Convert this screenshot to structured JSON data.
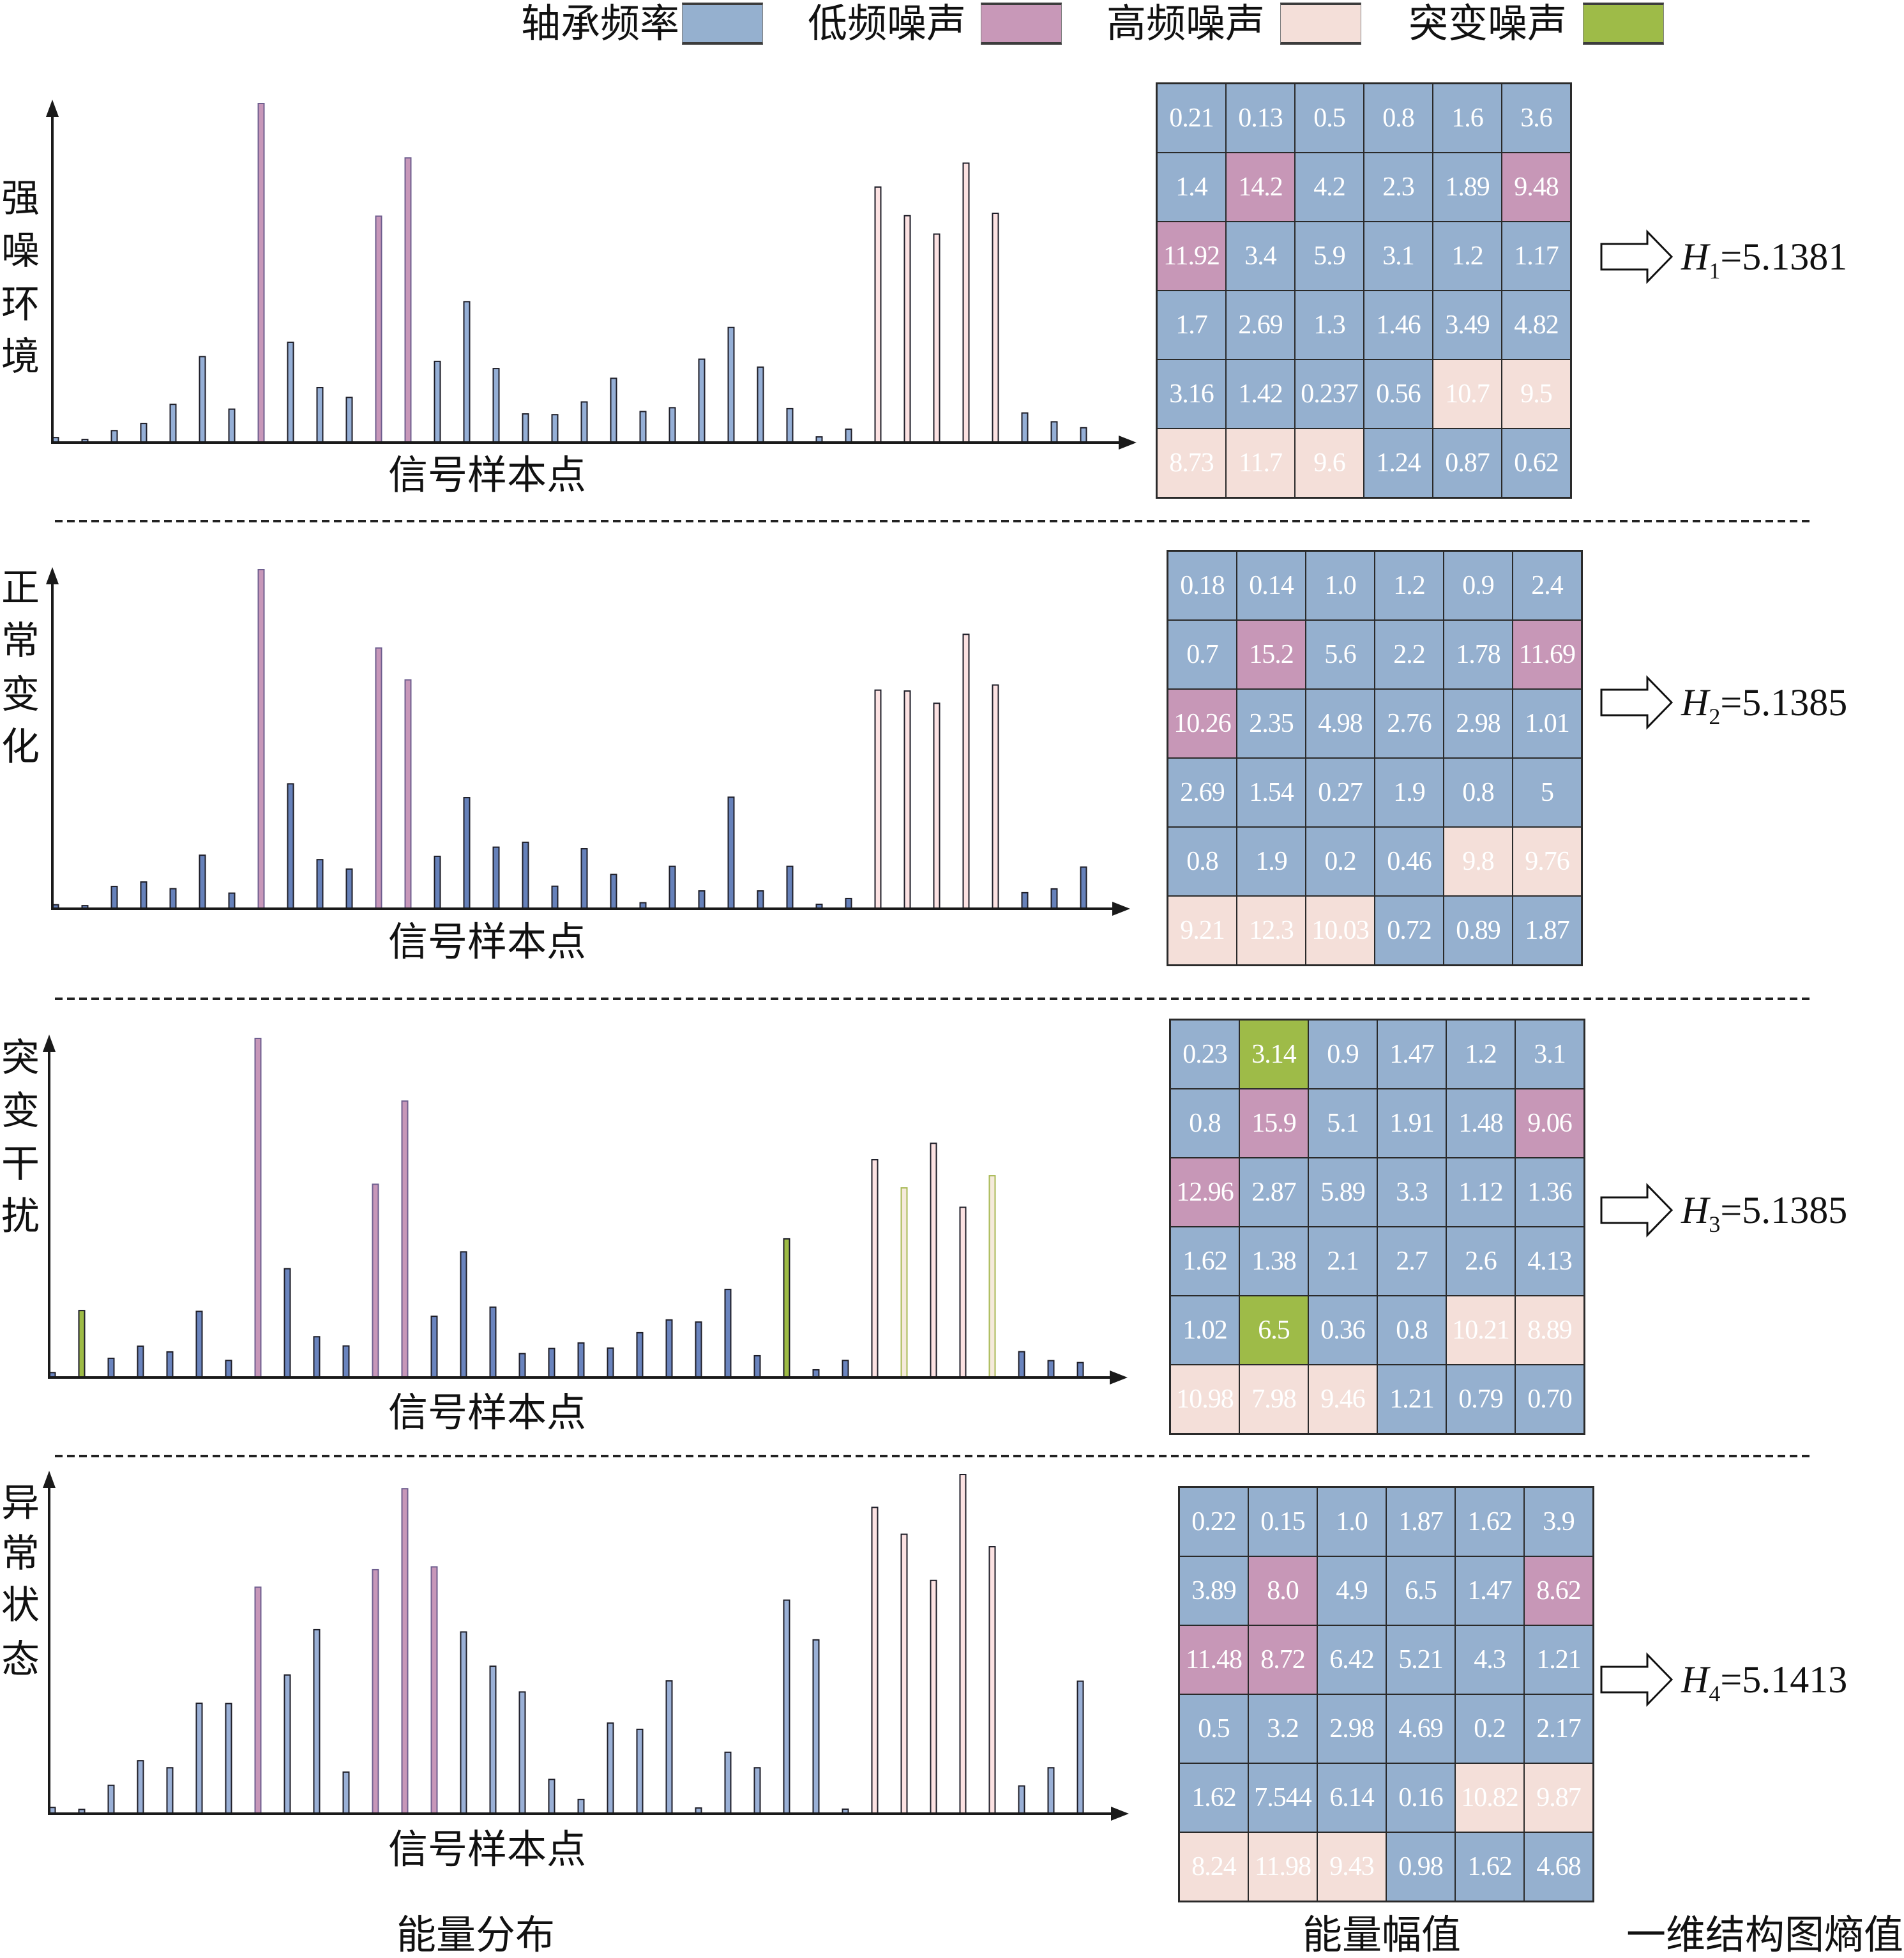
{
  "legend": [
    {
      "label": "轴承频率",
      "color": "#95B0CF"
    },
    {
      "label": "低频噪声",
      "color": "#C898B8"
    },
    {
      "label": "高频噪声",
      "color": "#F4DFD9"
    },
    {
      "label": "突变噪声",
      "color": "#9EBB48"
    }
  ],
  "cell_colors": {
    "b": "#95B0CF",
    "l": "#C797B7",
    "h": "#F4DFD9",
    "m": "#9EBB48"
  },
  "panels": [
    {
      "label": "强噪环境",
      "label_chars": [
        "强",
        "噪",
        "环",
        "境"
      ],
      "xlabel": "信号样本点",
      "matrix": [
        [
          "0.21",
          "0.13",
          "0.5",
          "0.8",
          "1.6",
          "3.6"
        ],
        [
          "1.4",
          "14.2",
          "4.2",
          "2.3",
          "1.89",
          "9.48"
        ],
        [
          "11.92",
          "3.4",
          "5.9",
          "3.1",
          "1.2",
          "1.17"
        ],
        [
          "1.7",
          "2.69",
          "1.3",
          "1.46",
          "3.49",
          "4.82"
        ],
        [
          "3.16",
          "1.42",
          "0.237",
          "0.56",
          "10.7",
          "9.5"
        ],
        [
          "8.73",
          "11.7",
          "9.6",
          "1.24",
          "0.87",
          "0.62"
        ]
      ],
      "classes": [
        "bbbbbb",
        "blbbbl",
        "lbbbbb",
        "bbbbbb",
        "bbbbhh",
        "hhhbbb"
      ],
      "entropy": {
        "symbol": "H",
        "index": "1",
        "relation": "=",
        "value": "5.1381"
      }
    },
    {
      "label": "正常变化",
      "label_chars": [
        "正",
        "常",
        "变",
        "化"
      ],
      "xlabel": "信号样本点",
      "matrix": [
        [
          "0.18",
          "0.14",
          "1.0",
          "1.2",
          "0.9",
          "2.4"
        ],
        [
          "0.7",
          "15.2",
          "5.6",
          "2.2",
          "1.78",
          "11.69"
        ],
        [
          "10.26",
          "2.35",
          "4.98",
          "2.76",
          "2.98",
          "1.01"
        ],
        [
          "2.69",
          "1.54",
          "0.27",
          "1.9",
          "0.8",
          "5"
        ],
        [
          "0.8",
          "1.9",
          "0.2",
          "0.46",
          "9.8",
          "9.76"
        ],
        [
          "9.21",
          "12.3",
          "10.03",
          "0.72",
          "0.89",
          "1.87"
        ]
      ],
      "classes": [
        "bbbbbb",
        "blbbbl",
        "lbbbbb",
        "bbbbbb",
        "bbbbhh",
        "hhhbbb"
      ],
      "entropy": {
        "symbol": "H",
        "index": "2",
        "relation": "=",
        "value": "5.1385"
      }
    },
    {
      "label": "突变干扰",
      "label_chars": [
        "突",
        "变",
        "干",
        "扰"
      ],
      "xlabel": "信号样本点",
      "matrix": [
        [
          "0.23",
          "3.14",
          "0.9",
          "1.47",
          "1.2",
          "3.1"
        ],
        [
          "0.8",
          "15.9",
          "5.1",
          "1.91",
          "1.48",
          "9.06"
        ],
        [
          "12.96",
          "2.87",
          "5.89",
          "3.3",
          "1.12",
          "1.36"
        ],
        [
          "1.62",
          "1.38",
          "2.1",
          "2.7",
          "2.6",
          "4.13"
        ],
        [
          "1.02",
          "6.5",
          "0.36",
          "0.8",
          "10.21",
          "8.89"
        ],
        [
          "10.98",
          "7.98",
          "9.46",
          "1.21",
          "0.79",
          "0.70"
        ]
      ],
      "classes": [
        "bmbbbb",
        "blbbbl",
        "lbbbbb",
        "bbbbbb",
        "bmbbhh",
        "hhhbbb"
      ],
      "entropy": {
        "symbol": "H",
        "index": "3",
        "relation": "=",
        "value": "5.1385"
      }
    },
    {
      "label": "异常状态",
      "label_chars": [
        "异",
        "常",
        "状",
        "态"
      ],
      "xlabel": "信号样本点",
      "matrix": [
        [
          "0.22",
          "0.15",
          "1.0",
          "1.87",
          "1.62",
          "3.9"
        ],
        [
          "3.89",
          "8.0",
          "4.9",
          "6.5",
          "1.47",
          "8.62"
        ],
        [
          "11.48",
          "8.72",
          "6.42",
          "5.21",
          "4.3",
          "1.21"
        ],
        [
          "0.5",
          "3.2",
          "2.98",
          "4.69",
          "0.2",
          "2.17"
        ],
        [
          "1.62",
          "7.544",
          "6.14",
          "0.16",
          "10.82",
          "9.87"
        ],
        [
          "8.24",
          "11.98",
          "9.43",
          "0.98",
          "1.62",
          "4.68"
        ]
      ],
      "classes": [
        "bbbbbb",
        "blbbbl",
        "llbbbb",
        "bbbbbb",
        "bbbbhh",
        "hhhbbb"
      ],
      "entropy": {
        "symbol": "H",
        "index": "4",
        "relation": "=",
        "value": "5.1413"
      }
    }
  ],
  "footer": {
    "distribution": "能量分布",
    "amplitude": "能量幅值",
    "entropy": "一维结构图熵值"
  },
  "chart_data": [
    {
      "type": "bar",
      "title": "强噪环境",
      "xlabel": "信号样本点",
      "ylabel": "",
      "ylim": [
        0,
        14.2
      ],
      "grid": false,
      "values": [
        0.21,
        0.13,
        0.5,
        0.8,
        1.6,
        3.6,
        1.4,
        14.2,
        4.2,
        2.3,
        1.89,
        9.48,
        11.92,
        3.4,
        5.9,
        3.1,
        1.2,
        1.17,
        1.7,
        2.69,
        1.3,
        1.46,
        3.49,
        4.82,
        3.16,
        1.42,
        0.237,
        0.56,
        10.7,
        9.5,
        8.73,
        11.7,
        9.6,
        1.24,
        0.87,
        0.62
      ],
      "bar_class": [
        "bbbbbb",
        "blbbbl",
        "lbbbbb",
        "bbbbbb",
        "bbbbhh",
        "hhhbbb"
      ],
      "bar_colors": {
        "b": "#95AFD6",
        "l": "#C797B9",
        "h": "#FCE2E2",
        "m": "#9DBB45"
      }
    },
    {
      "type": "bar",
      "title": "正常变化",
      "xlabel": "信号样本点",
      "ylabel": "",
      "ylim": [
        0,
        15.2
      ],
      "grid": false,
      "values": [
        0.18,
        0.14,
        1.0,
        1.2,
        0.9,
        2.4,
        0.7,
        15.2,
        5.6,
        2.2,
        1.78,
        11.69,
        10.26,
        2.35,
        4.98,
        2.76,
        2.98,
        1.01,
        2.69,
        1.54,
        0.27,
        1.9,
        0.8,
        5,
        0.8,
        1.9,
        0.2,
        0.46,
        9.8,
        9.76,
        9.21,
        12.3,
        10.03,
        0.72,
        0.89,
        1.87
      ],
      "bar_class": [
        "bbbbbb",
        "blbbbl",
        "lbbbbb",
        "bbbbbb",
        "bbbbhh",
        "hhhbbb"
      ],
      "bar_colors": {
        "b": "#6681BA",
        "l": "#C797B9",
        "h": "#FCE2E2",
        "m": "#9DBB45"
      }
    },
    {
      "type": "bar",
      "title": "突变干扰",
      "xlabel": "信号样本点",
      "ylabel": "",
      "ylim": [
        0,
        15.9
      ],
      "grid": false,
      "values": [
        0.23,
        3.14,
        0.9,
        1.47,
        1.2,
        3.1,
        0.8,
        15.9,
        5.1,
        1.91,
        1.48,
        9.06,
        12.96,
        2.87,
        5.89,
        3.3,
        1.12,
        1.36,
        1.62,
        1.38,
        2.1,
        2.7,
        2.6,
        4.13,
        1.02,
        6.5,
        0.36,
        0.8,
        10.21,
        8.89,
        10.98,
        7.98,
        9.46,
        1.21,
        0.79,
        0.7
      ],
      "bar_class": [
        "bmbbbb",
        "blbbbl",
        "lbbbbb",
        "bbbbbb",
        "bmbbhh",
        "hhhbbb"
      ],
      "bar_colors": {
        "b": "#6A84BE",
        "l": "#C797B9",
        "h": "#FCE2E2",
        "m": "#9DBB45"
      },
      "bar_fill_overrides": {
        "29": "#F5EADB",
        "32": "#F5EADB"
      },
      "bar_outline_overrides": {
        "29": "#A8B955",
        "32": "#A8B955"
      }
    },
    {
      "type": "bar",
      "title": "异常状态",
      "xlabel": "信号样本点",
      "ylabel": "",
      "ylim": [
        0,
        11.98
      ],
      "grid": false,
      "values": [
        0.22,
        0.15,
        1.0,
        1.87,
        1.62,
        3.9,
        3.89,
        8.0,
        4.9,
        6.5,
        1.47,
        8.62,
        11.48,
        8.72,
        6.42,
        5.21,
        4.3,
        1.21,
        0.5,
        3.2,
        2.98,
        4.69,
        0.2,
        2.17,
        1.62,
        7.544,
        6.14,
        0.16,
        10.82,
        9.87,
        8.24,
        11.98,
        9.43,
        0.98,
        1.62,
        4.68
      ],
      "bar_class": [
        "bbbbbb",
        "blbbbl",
        "llbbbb",
        "bbbbbb",
        "bbbbhh",
        "hhhbbb"
      ],
      "bar_colors": {
        "b": "#9AB0D6",
        "l": "#C797B9",
        "h": "#FCE2E2",
        "m": "#9DBB45"
      }
    }
  ]
}
